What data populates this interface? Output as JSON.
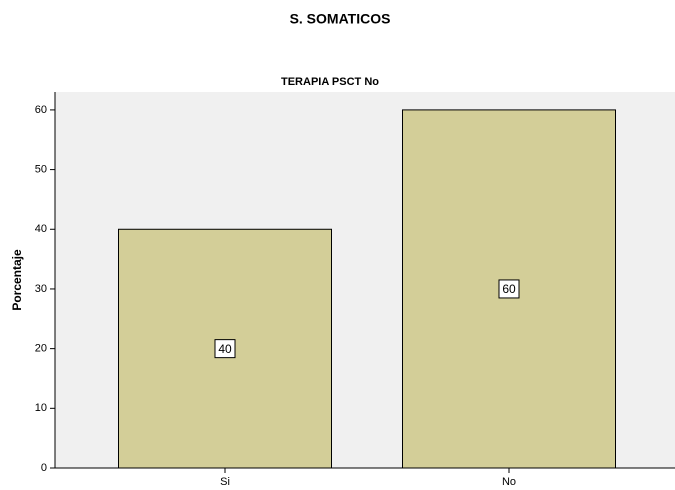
{
  "chart_data": {
    "type": "bar",
    "title": "S. SOMATICOS",
    "subtitle": "TERAPIA PSCT  No",
    "y_label": "Porcentaje",
    "categories": [
      "Si",
      "No"
    ],
    "values": [
      40,
      60
    ],
    "color": "#d3ce98",
    "ylim": [
      0,
      63
    ],
    "yticks": [
      0,
      10,
      20,
      30,
      40,
      50,
      60
    ],
    "grid": false
  }
}
